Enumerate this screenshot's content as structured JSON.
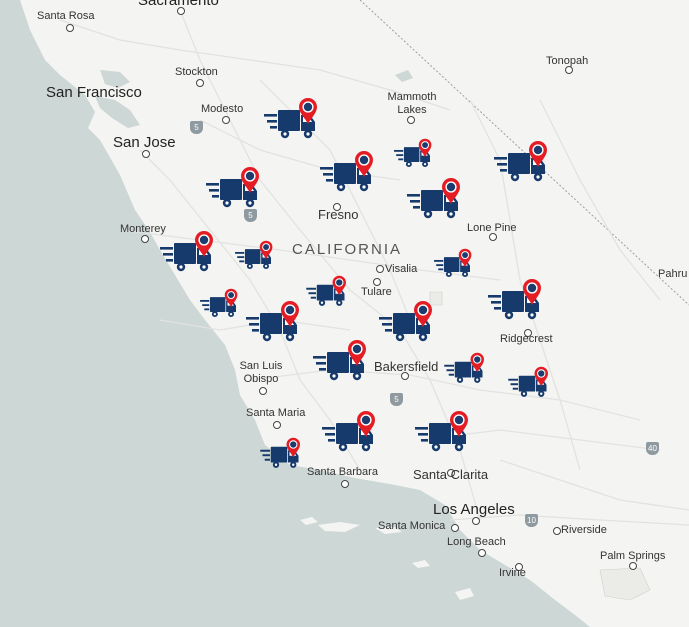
{
  "map": {
    "state_label": "CALIFORNIA",
    "cities": [
      {
        "name": "Santa Rosa",
        "size": "small"
      },
      {
        "name": "Sacramento",
        "size": "big"
      },
      {
        "name": "Stockton",
        "size": "small"
      },
      {
        "name": "San Francisco",
        "size": "big"
      },
      {
        "name": "Modesto",
        "size": "small"
      },
      {
        "name": "San Jose",
        "size": "big"
      },
      {
        "name": "Mammoth Lakes",
        "size": "small"
      },
      {
        "name": "Tonopah",
        "size": "small"
      },
      {
        "name": "Fresno",
        "size": "med"
      },
      {
        "name": "Monterey",
        "size": "small"
      },
      {
        "name": "Lone Pine",
        "size": "small"
      },
      {
        "name": "Visalia",
        "size": "small"
      },
      {
        "name": "Tulare",
        "size": "small"
      },
      {
        "name": "Ridgecrest",
        "size": "small"
      },
      {
        "name": "San Luis Obispo",
        "size": "small"
      },
      {
        "name": "Bakersfield",
        "size": "med"
      },
      {
        "name": "Santa Maria",
        "size": "small"
      },
      {
        "name": "Santa Barbara",
        "size": "small"
      },
      {
        "name": "Santa Clarita",
        "size": "med"
      },
      {
        "name": "Los Angeles",
        "size": "big"
      },
      {
        "name": "Santa Monica",
        "size": "small"
      },
      {
        "name": "Riverside",
        "size": "small"
      },
      {
        "name": "Long Beach",
        "size": "small"
      },
      {
        "name": "Irvine",
        "size": "small"
      },
      {
        "name": "Palm Springs",
        "size": "small"
      },
      {
        "name": "Pahru",
        "size": "small"
      }
    ],
    "highway_shields": [
      "5",
      "5",
      "5",
      "10",
      "40"
    ],
    "colors": {
      "ocean": "#cdd7d6",
      "land": "#f4f4f2",
      "truck": "#163a6b",
      "pin": "#e41c23",
      "pin_center": "#1a3c6e"
    },
    "marker_icon": "delivery-truck-with-location-pin-icon"
  }
}
